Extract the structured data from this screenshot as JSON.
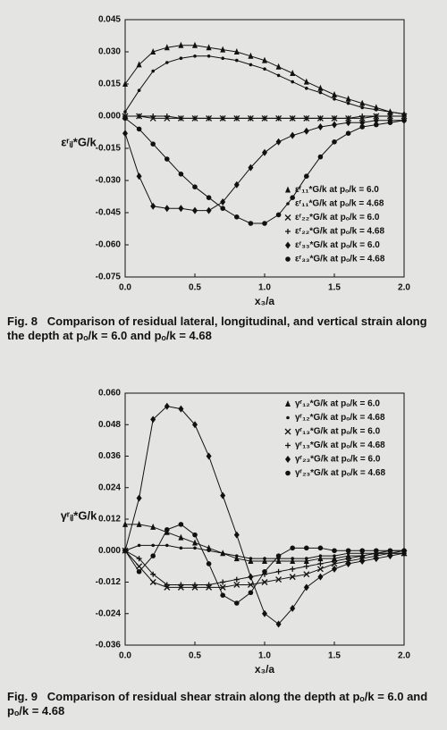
{
  "chart_data": [
    {
      "type": "line",
      "caption_label": "Fig. 8",
      "caption": "Comparison of residual lateral, longitudinal, and vertical strain along the depth at pₒ/k = 6.0 and pₒ/k = 4.68",
      "y_label": "εʳᵢⱼ*G/k",
      "x_label": "x₃/a",
      "x": [
        0,
        0.1,
        0.2,
        0.3,
        0.4,
        0.5,
        0.6,
        0.7,
        0.8,
        0.9,
        1.0,
        1.1,
        1.2,
        1.3,
        1.4,
        1.5,
        1.6,
        1.7,
        1.8,
        1.9,
        2.0
      ],
      "xlim": [
        0,
        2.0
      ],
      "xticks": [
        {
          "value": 0,
          "label": "0.0"
        },
        0.5,
        {
          "value": 1,
          "label": "1.0"
        },
        1.5,
        {
          "value": 2,
          "label": "2.0"
        }
      ],
      "ylim": [
        -0.075,
        0.045
      ],
      "yticks": [
        0.045,
        {
          "value": 0.03,
          "label": "0.030"
        },
        0.015,
        {
          "value": 0,
          "label": "0.000"
        },
        -0.015,
        {
          "value": -0.03,
          "label": "-0.030"
        },
        -0.045,
        {
          "value": -0.06,
          "label": "-0.060"
        },
        -0.075
      ],
      "legend": "lower right",
      "series": [
        {
          "name": "εʳ₁₁*G/k at pₒ/k = 6.0",
          "color": "#111",
          "marker": "triangle",
          "values": [
            0.015,
            0.024,
            0.03,
            0.032,
            0.033,
            0.033,
            0.032,
            0.031,
            0.03,
            0.028,
            0.026,
            0.023,
            0.02,
            0.016,
            0.013,
            0.01,
            0.008,
            0.006,
            0.004,
            0.002,
            0.001
          ]
        },
        {
          "name": "εʳ₁₁*G/k at pₒ/k = 4.68",
          "color": "#111",
          "marker": "dot",
          "values": [
            0.002,
            0.012,
            0.021,
            0.025,
            0.027,
            0.028,
            0.028,
            0.027,
            0.026,
            0.024,
            0.022,
            0.019,
            0.016,
            0.013,
            0.011,
            0.008,
            0.006,
            0.004,
            0.003,
            0.002,
            0.001
          ]
        },
        {
          "name": "εʳ₂₂*G/k at pₒ/k = 6.0",
          "color": "#111",
          "marker": "x",
          "values": [
            0,
            0,
            -0.001,
            -0.001,
            -0.001,
            -0.001,
            -0.001,
            -0.001,
            -0.001,
            -0.001,
            -0.001,
            -0.001,
            -0.001,
            -0.001,
            -0.001,
            -0.001,
            -0.001,
            -0.001,
            0,
            0,
            0
          ]
        },
        {
          "name": "εʳ₂₂*G/k at pₒ/k = 4.68",
          "color": "#111",
          "marker": "plus",
          "values": [
            0,
            0,
            0,
            0,
            -0.001,
            -0.001,
            -0.001,
            -0.001,
            -0.001,
            -0.001,
            -0.001,
            -0.001,
            -0.001,
            -0.001,
            -0.001,
            -0.001,
            -0.001,
            0,
            0,
            0,
            0
          ]
        },
        {
          "name": "εʳ₃₃*G/k at pₒ/k = 6.0",
          "color": "#111",
          "marker": "diamond",
          "values": [
            -0.008,
            -0.028,
            -0.042,
            -0.043,
            -0.043,
            -0.044,
            -0.044,
            -0.04,
            -0.032,
            -0.024,
            -0.017,
            -0.012,
            -0.009,
            -0.007,
            -0.005,
            -0.004,
            -0.003,
            -0.003,
            -0.002,
            -0.002,
            -0.002
          ]
        },
        {
          "name": "εʳ₃₃*G/k at pₒ/k = 4.68",
          "color": "#111",
          "marker": "circle",
          "values": [
            -0.001,
            -0.006,
            -0.013,
            -0.02,
            -0.027,
            -0.033,
            -0.038,
            -0.043,
            -0.047,
            -0.05,
            -0.05,
            -0.046,
            -0.038,
            -0.028,
            -0.019,
            -0.012,
            -0.008,
            -0.005,
            -0.004,
            -0.003,
            -0.002
          ]
        }
      ]
    },
    {
      "type": "line",
      "caption_label": "Fig. 9",
      "caption": "Comparison of residual shear strain along the depth at pₒ/k = 6.0 and pₒ/k = 4.68",
      "y_label": "γʳᵢⱼ*G/k",
      "x_label": "x₃/a",
      "x": [
        0,
        0.1,
        0.2,
        0.3,
        0.4,
        0.5,
        0.6,
        0.7,
        0.8,
        0.9,
        1.0,
        1.1,
        1.2,
        1.3,
        1.4,
        1.5,
        1.6,
        1.7,
        1.8,
        1.9,
        2.0
      ],
      "xlim": [
        0,
        2.0
      ],
      "xticks": [
        {
          "value": 0,
          "label": "0.0"
        },
        0.5,
        {
          "value": 1,
          "label": "1.0"
        },
        1.5,
        {
          "value": 2,
          "label": "2.0"
        }
      ],
      "ylim": [
        -0.036,
        0.06
      ],
      "yticks": [
        {
          "value": 0.06,
          "label": "0.060"
        },
        0.048,
        0.036,
        0.024,
        0.012,
        {
          "value": 0,
          "label": "0.000"
        },
        -0.012,
        -0.024,
        -0.036
      ],
      "legend": "upper right",
      "series": [
        {
          "name": "γʳ₁₂*G/k at pₒ/k = 6.0",
          "color": "#111",
          "marker": "triangle",
          "values": [
            0.01,
            0.01,
            0.009,
            0.007,
            0.005,
            0.003,
            0.001,
            -0.001,
            -0.003,
            -0.004,
            -0.004,
            -0.004,
            -0.004,
            -0.004,
            -0.003,
            -0.003,
            -0.002,
            -0.002,
            -0.001,
            -0.001,
            -0.001
          ]
        },
        {
          "name": "γʳ₁₂*G/k at pₒ/k = 4.68",
          "color": "#111",
          "marker": "dot",
          "values": [
            0,
            0.002,
            0.002,
            0.002,
            0.001,
            0.001,
            0,
            -0.001,
            -0.002,
            -0.003,
            -0.003,
            -0.003,
            -0.003,
            -0.003,
            -0.002,
            -0.002,
            -0.001,
            -0.001,
            -0.001,
            0,
            0
          ]
        },
        {
          "name": "γʳ₁₃*G/k at pₒ/k = 6.0",
          "color": "#111",
          "marker": "x",
          "values": [
            0,
            -0.006,
            -0.012,
            -0.014,
            -0.014,
            -0.014,
            -0.014,
            -0.014,
            -0.013,
            -0.013,
            -0.012,
            -0.011,
            -0.01,
            -0.009,
            -0.007,
            -0.005,
            -0.004,
            -0.003,
            -0.002,
            -0.001,
            -0.001
          ]
        },
        {
          "name": "γʳ₁₃*G/k at pₒ/k = 4.68",
          "color": "#111",
          "marker": "plus",
          "values": [
            0,
            -0.003,
            -0.009,
            -0.013,
            -0.013,
            -0.013,
            -0.013,
            -0.012,
            -0.011,
            -0.01,
            -0.009,
            -0.008,
            -0.007,
            -0.006,
            -0.005,
            -0.004,
            -0.003,
            -0.002,
            -0.001,
            -0.001,
            0
          ]
        },
        {
          "name": "γʳ₂₃*G/k at pₒ/k = 6.0",
          "color": "#111",
          "marker": "diamond",
          "values": [
            0,
            0.02,
            0.05,
            0.055,
            0.054,
            0.048,
            0.036,
            0.021,
            0.006,
            -0.01,
            -0.024,
            -0.028,
            -0.022,
            -0.014,
            -0.01,
            -0.007,
            -0.005,
            -0.004,
            -0.003,
            -0.002,
            -0.001
          ]
        },
        {
          "name": "γʳ₂₃*G/k at pₒ/k = 4.68",
          "color": "#111",
          "marker": "circle",
          "values": [
            0,
            -0.008,
            -0.002,
            0.008,
            0.01,
            0.006,
            -0.005,
            -0.017,
            -0.02,
            -0.016,
            -0.008,
            -0.002,
            0.001,
            0.001,
            0.001,
            0,
            0,
            0,
            0,
            0,
            0
          ]
        }
      ]
    }
  ]
}
